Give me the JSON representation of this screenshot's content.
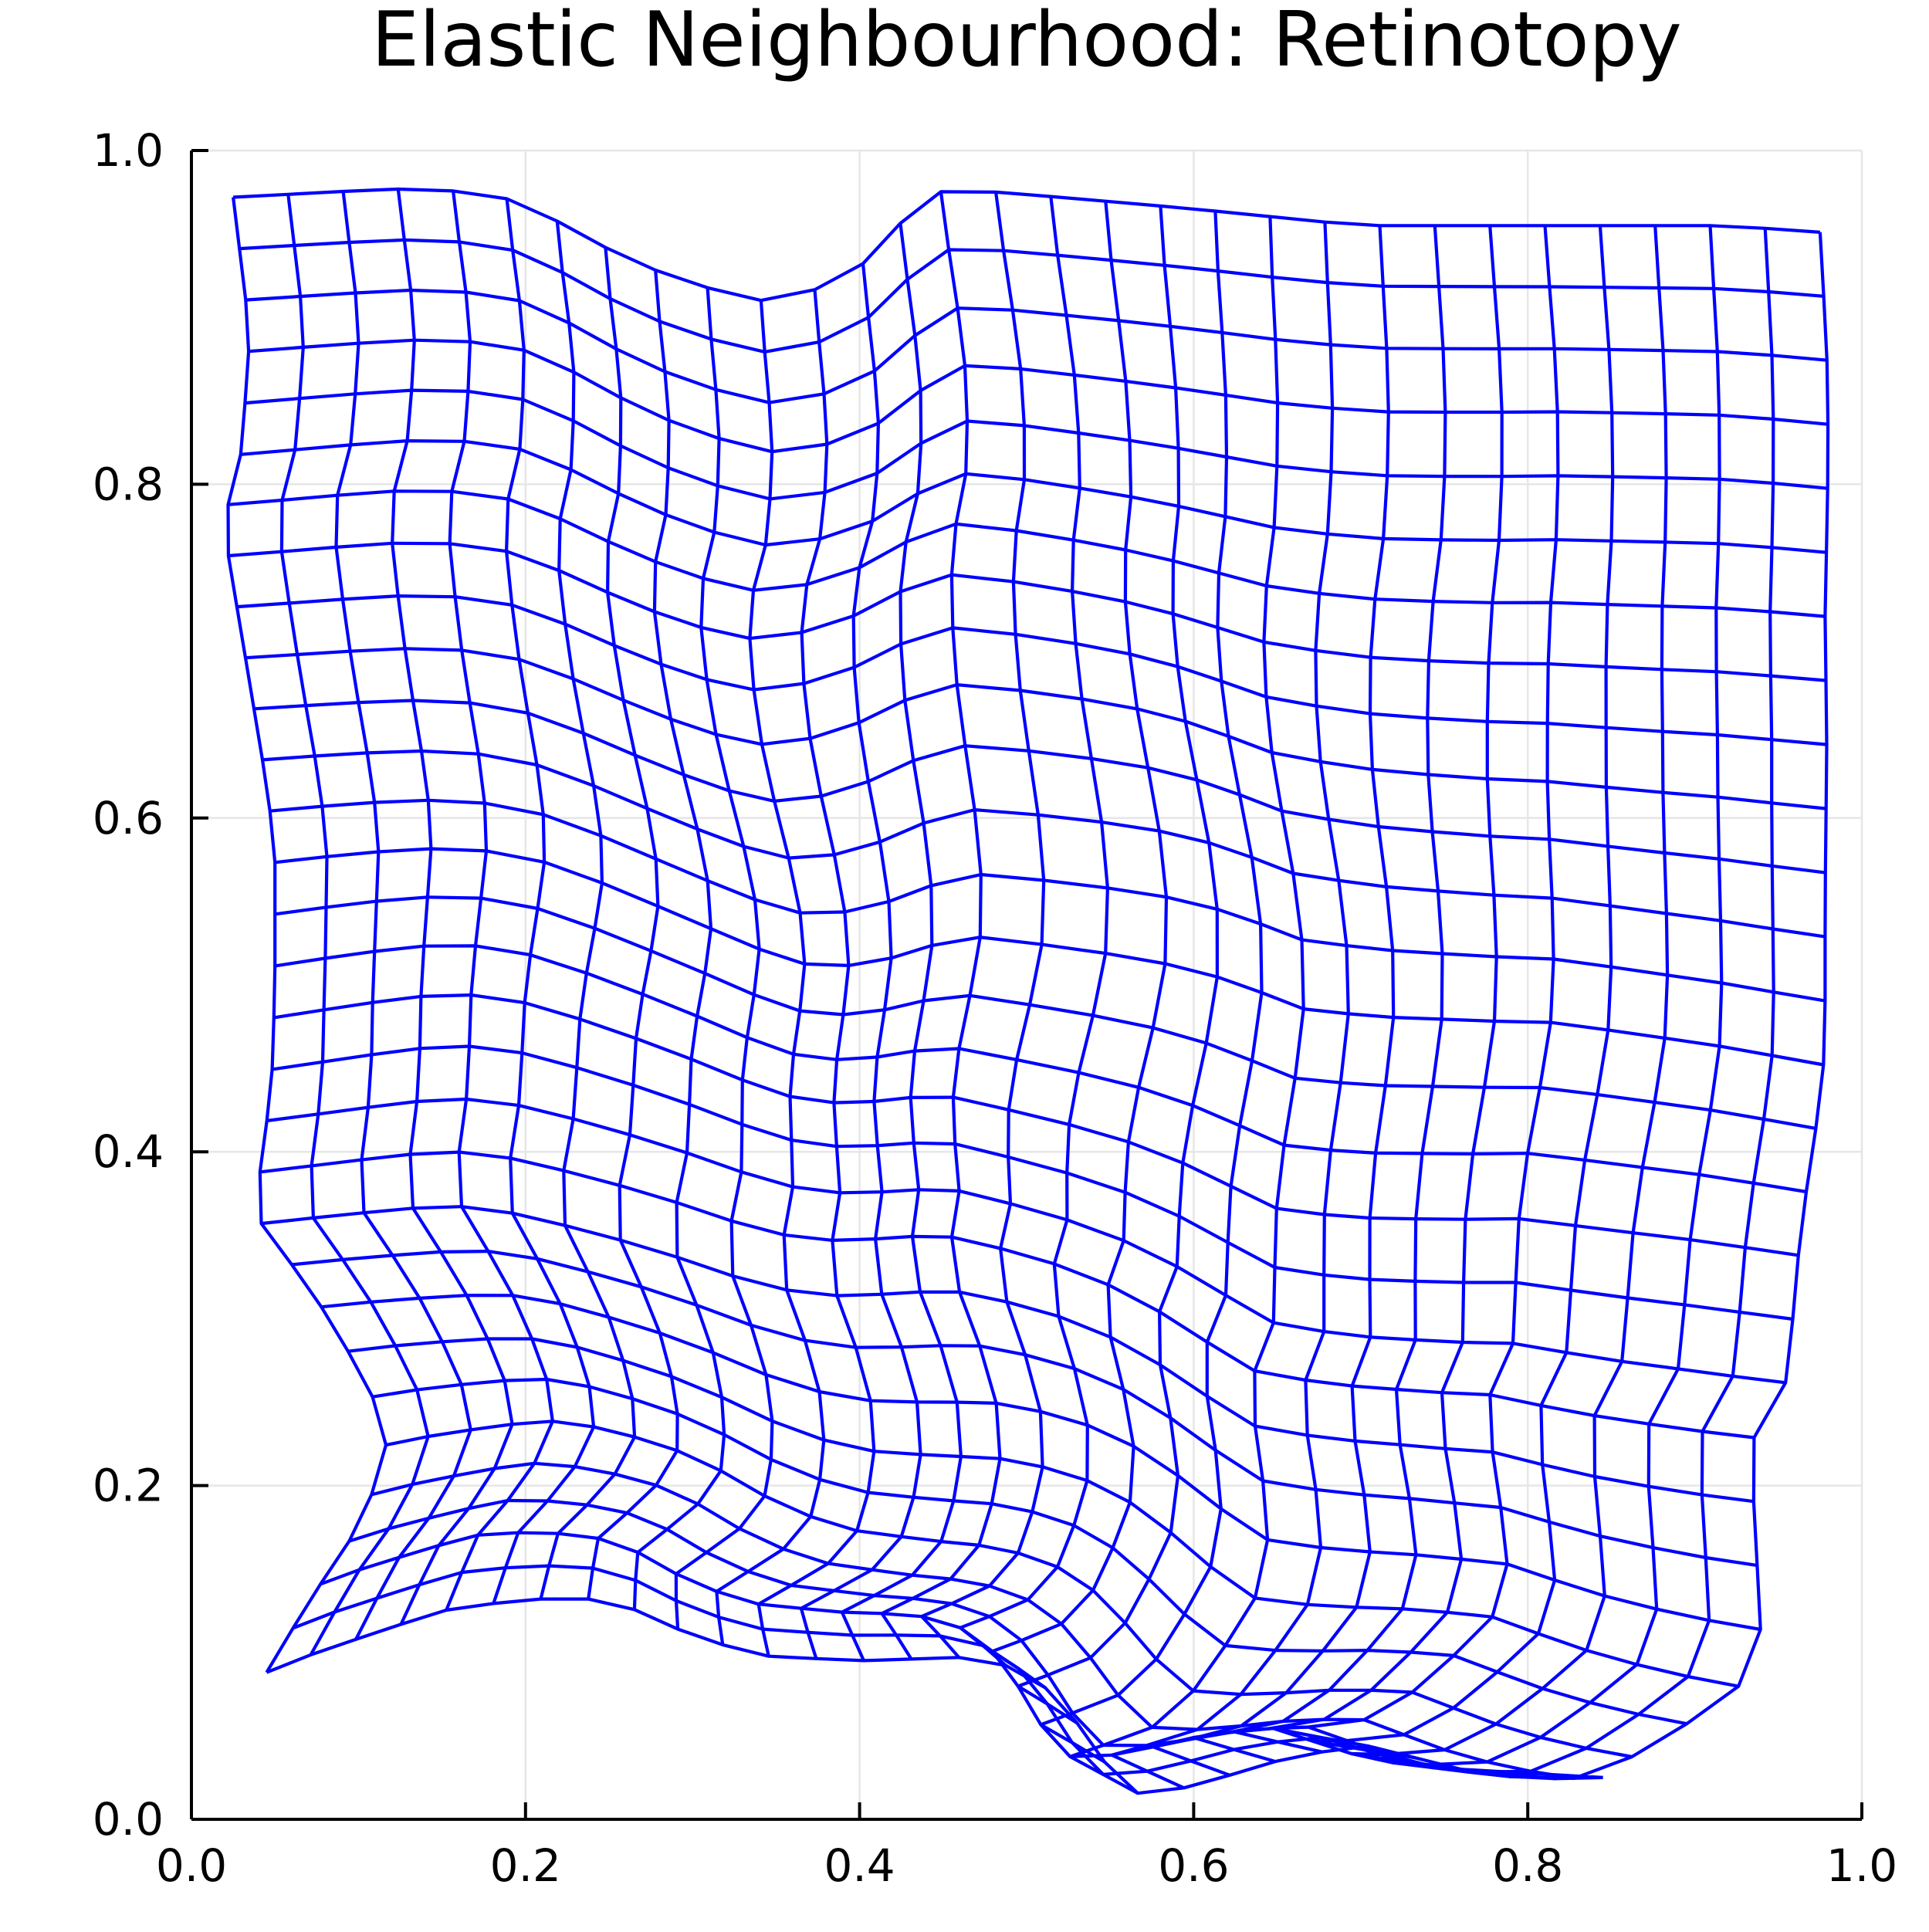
{
  "chart_data": {
    "type": "line",
    "title": "Elastic Neighbourhood: Retinotopy",
    "xlabel": "",
    "ylabel": "",
    "xlim": [
      0.0,
      1.0
    ],
    "ylim": [
      0.0,
      1.0
    ],
    "xticks": [
      "0.0",
      "0.2",
      "0.4",
      "0.6",
      "0.8",
      "1.0"
    ],
    "yticks": [
      "0.0",
      "0.2",
      "0.4",
      "0.6",
      "0.8",
      "1.0"
    ],
    "grid": true,
    "legend": "none",
    "line_color": "#0000ff",
    "grid_size": [
      30,
      30
    ],
    "outline": {
      "top": [
        [
          0.025,
          0.972
        ],
        [
          0.12,
          0.977
        ],
        [
          0.18,
          0.975
        ],
        [
          0.225,
          0.955
        ],
        [
          0.26,
          0.935
        ],
        [
          0.3,
          0.92
        ],
        [
          0.34,
          0.91
        ],
        [
          0.37,
          0.915
        ],
        [
          0.4,
          0.93
        ],
        [
          0.425,
          0.957
        ],
        [
          0.44,
          0.975
        ],
        [
          0.47,
          0.976
        ],
        [
          0.52,
          0.972
        ],
        [
          0.6,
          0.965
        ],
        [
          0.7,
          0.955
        ],
        [
          0.8,
          0.955
        ],
        [
          0.92,
          0.955
        ],
        [
          0.975,
          0.951
        ]
      ],
      "right": [
        [
          0.975,
          0.951
        ],
        [
          0.979,
          0.88
        ],
        [
          0.98,
          0.82
        ],
        [
          0.978,
          0.72
        ],
        [
          0.979,
          0.645
        ],
        [
          0.978,
          0.55
        ],
        [
          0.978,
          0.46
        ],
        [
          0.972,
          0.41
        ],
        [
          0.965,
          0.365
        ],
        [
          0.96,
          0.32
        ],
        [
          0.957,
          0.275
        ],
        [
          0.953,
          0.255
        ],
        [
          0.935,
          0.228
        ],
        [
          0.935,
          0.195
        ],
        [
          0.938,
          0.14
        ],
        [
          0.94,
          0.1
        ],
        [
          0.925,
          0.078
        ],
        [
          0.9,
          0.06
        ],
        [
          0.87,
          0.043
        ],
        [
          0.845,
          0.025
        ],
        [
          0.8,
          0.024
        ],
        [
          0.76,
          0.03
        ]
      ],
      "bottom": [
        [
          0.045,
          0.088
        ],
        [
          0.075,
          0.1
        ],
        [
          0.15,
          0.125
        ],
        [
          0.2,
          0.132
        ],
        [
          0.24,
          0.132
        ],
        [
          0.26,
          0.128
        ],
        [
          0.3,
          0.11
        ],
        [
          0.34,
          0.098
        ],
        [
          0.4,
          0.095
        ],
        [
          0.46,
          0.097
        ],
        [
          0.5,
          0.09
        ],
        [
          0.525,
          0.065
        ],
        [
          0.545,
          0.037
        ],
        [
          0.555,
          0.021
        ],
        [
          0.57,
          0.014
        ],
        [
          0.6,
          0.02
        ],
        [
          0.65,
          0.035
        ],
        [
          0.7,
          0.045
        ],
        [
          0.76,
          0.03
        ],
        [
          0.8,
          0.024
        ],
        [
          0.845,
          0.025
        ]
      ],
      "left": [
        [
          0.025,
          0.972
        ],
        [
          0.035,
          0.89
        ],
        [
          0.03,
          0.82
        ],
        [
          0.02,
          0.78
        ],
        [
          0.02,
          0.77
        ],
        [
          0.025,
          0.74
        ],
        [
          0.035,
          0.68
        ],
        [
          0.045,
          0.62
        ],
        [
          0.05,
          0.58
        ],
        [
          0.05,
          0.5
        ],
        [
          0.048,
          0.44
        ],
        [
          0.04,
          0.38
        ],
        [
          0.042,
          0.355
        ],
        [
          0.07,
          0.32
        ],
        [
          0.1,
          0.27
        ],
        [
          0.11,
          0.25
        ],
        [
          0.118,
          0.23
        ],
        [
          0.11,
          0.2
        ],
        [
          0.1,
          0.175
        ],
        [
          0.07,
          0.13
        ],
        [
          0.045,
          0.088
        ]
      ]
    }
  }
}
